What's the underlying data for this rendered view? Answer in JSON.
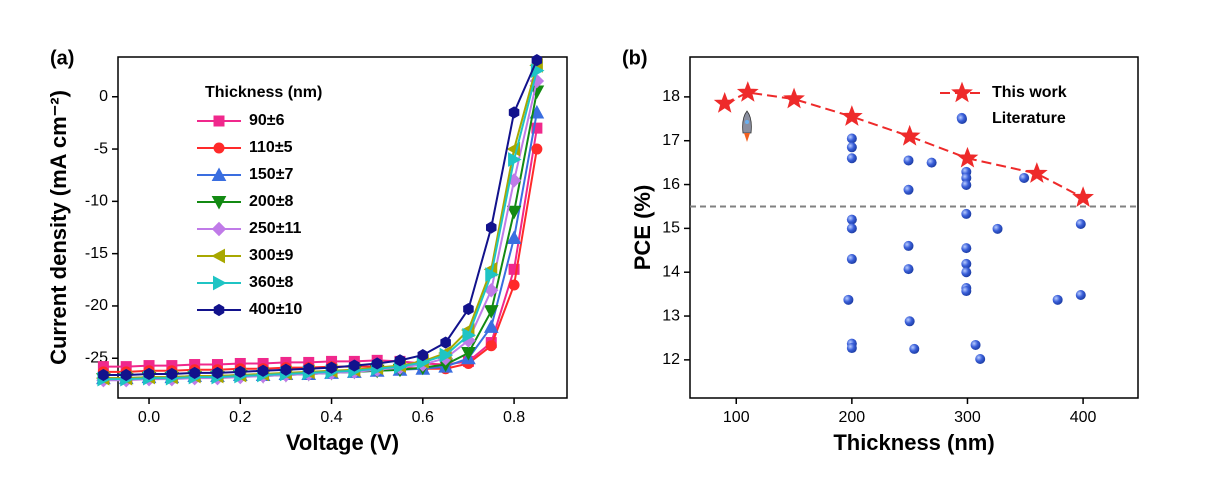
{
  "chart_data": [
    {
      "type": "line",
      "panel_label": "(a)",
      "xlabel": "Voltage (V)",
      "ylabel": "Current density (mA cm⁻²)",
      "xlim": [
        -0.068,
        0.916
      ],
      "ylim": [
        -28.8,
        3.8
      ],
      "xticks": [
        {
          "value": 0,
          "label": "0.0"
        },
        {
          "value": 0.2,
          "label": "0.2"
        },
        {
          "value": 0.4,
          "label": "0.4"
        },
        {
          "value": 0.6,
          "label": "0.6"
        },
        {
          "value": 0.8,
          "label": "0.8"
        }
      ],
      "yticks": [
        -25,
        -20,
        -15,
        -10,
        -5,
        0
      ],
      "legend": "upper left",
      "legend_title": "Thickness (nm)",
      "x": [
        -0.1,
        -0.05,
        0,
        0.05,
        0.1,
        0.15,
        0.2,
        0.25,
        0.3,
        0.35,
        0.4,
        0.45,
        0.5,
        0.55,
        0.6,
        0.65,
        0.7,
        0.75,
        0.8,
        0.85
      ],
      "series": [
        {
          "name": "90±6",
          "color": "#f0288c",
          "marker": "square",
          "line": "solid",
          "values": [
            -25.8,
            -25.8,
            -25.7,
            -25.7,
            -25.6,
            -25.6,
            -25.5,
            -25.5,
            -25.4,
            -25.4,
            -25.3,
            -25.3,
            -25.2,
            -25.3,
            -25.5,
            -25.6,
            -25.3,
            -23.5,
            -16.5,
            -3
          ]
        },
        {
          "name": "110±5",
          "color": "#ff2a2a",
          "marker": "circle",
          "line": "solid",
          "values": [
            -26.3,
            -26.3,
            -26.2,
            -26.2,
            -26.1,
            -26.1,
            -26.0,
            -26.0,
            -25.9,
            -25.9,
            -25.8,
            -25.8,
            -25.8,
            -25.9,
            -26.0,
            -26.0,
            -25.5,
            -23.8,
            -18,
            -5
          ]
        },
        {
          "name": "150±7",
          "color": "#3a6ee0",
          "marker": "triangle-up",
          "line": "solid",
          "values": [
            -26.9,
            -26.9,
            -26.8,
            -26.8,
            -26.7,
            -26.7,
            -26.6,
            -26.6,
            -26.5,
            -26.5,
            -26.4,
            -26.3,
            -26.2,
            -26.1,
            -26.0,
            -25.8,
            -25.0,
            -22.0,
            -13.5,
            -1.5
          ]
        },
        {
          "name": "200±8",
          "color": "#138a13",
          "marker": "triangle-down",
          "line": "solid",
          "values": [
            -27.0,
            -27.0,
            -26.9,
            -26.9,
            -26.8,
            -26.8,
            -26.7,
            -26.7,
            -26.6,
            -26.5,
            -26.4,
            -26.3,
            -26.2,
            -26.1,
            -25.9,
            -25.6,
            -24.5,
            -20.5,
            -11,
            0.5
          ]
        },
        {
          "name": "250±11",
          "color": "#c07be8",
          "marker": "diamond",
          "line": "solid",
          "values": [
            -27.1,
            -27.1,
            -27.0,
            -27.0,
            -26.9,
            -26.9,
            -26.8,
            -26.7,
            -26.6,
            -26.5,
            -26.4,
            -26.3,
            -26.1,
            -25.9,
            -25.6,
            -25.0,
            -23.3,
            -18.5,
            -8,
            1.5
          ]
        },
        {
          "name": "300±9",
          "color": "#a8a800",
          "marker": "triangle-left",
          "line": "solid",
          "values": [
            -26.9,
            -26.9,
            -26.8,
            -26.8,
            -26.7,
            -26.7,
            -26.6,
            -26.5,
            -26.4,
            -26.3,
            -26.2,
            -26.1,
            -25.9,
            -25.7,
            -25.3,
            -24.5,
            -22.3,
            -16.5,
            -5,
            3
          ]
        },
        {
          "name": "360±8",
          "color": "#1fc4c4",
          "marker": "triangle-right",
          "line": "solid",
          "values": [
            -27.0,
            -27.0,
            -26.9,
            -26.9,
            -26.8,
            -26.8,
            -26.7,
            -26.6,
            -26.5,
            -26.4,
            -26.3,
            -26.2,
            -26.0,
            -25.8,
            -25.4,
            -24.7,
            -22.8,
            -17,
            -6,
            2.5
          ]
        },
        {
          "name": "400±10",
          "color": "#12128c",
          "marker": "hexagon",
          "line": "solid",
          "values": [
            -26.6,
            -26.6,
            -26.5,
            -26.5,
            -26.4,
            -26.4,
            -26.3,
            -26.2,
            -26.1,
            -26.0,
            -25.9,
            -25.7,
            -25.5,
            -25.2,
            -24.7,
            -23.5,
            -20.3,
            -12.5,
            -1.5,
            3.5
          ]
        }
      ]
    },
    {
      "type": "scatter",
      "panel_label": "(b)",
      "xlabel": "Thickness (nm)",
      "ylabel": "PCE (%)",
      "xlim": [
        60,
        447.5
      ],
      "ylim": [
        11.13,
        18.91
      ],
      "xticks": [
        100,
        200,
        300,
        400
      ],
      "yticks": [
        12,
        13,
        14,
        15,
        16,
        17,
        18
      ],
      "legend": "upper right",
      "reference_line": 15.5,
      "series": [
        {
          "name": "This work",
          "color": "#ee2a2a",
          "marker": "star",
          "line": "dashed",
          "x": [
            90,
            110,
            150,
            200,
            250,
            300,
            360,
            400
          ],
          "values": [
            17.85,
            18.1,
            17.95,
            17.55,
            17.1,
            16.6,
            16.25,
            15.7
          ]
        },
        {
          "name": "Literature",
          "color": "#3a5fd9",
          "marker": "circle",
          "x": [
            200,
            200,
            200,
            200,
            200,
            200,
            197,
            200,
            200,
            249,
            249,
            249,
            249,
            250,
            254,
            269,
            295,
            299,
            299,
            299,
            299,
            299,
            299,
            299,
            299,
            299,
            307,
            311,
            326,
            349,
            378,
            398,
            398
          ],
          "values": [
            17.05,
            16.85,
            16.6,
            15.2,
            15.0,
            14.3,
            13.37,
            12.37,
            12.27,
            16.55,
            15.88,
            14.6,
            14.07,
            12.88,
            12.25,
            16.5,
            17.52,
            16.29,
            16.15,
            15.99,
            15.33,
            14.55,
            14.19,
            14.0,
            13.64,
            13.57,
            12.34,
            12.02,
            14.99,
            16.15,
            13.37,
            15.1,
            13.48
          ]
        }
      ]
    }
  ]
}
